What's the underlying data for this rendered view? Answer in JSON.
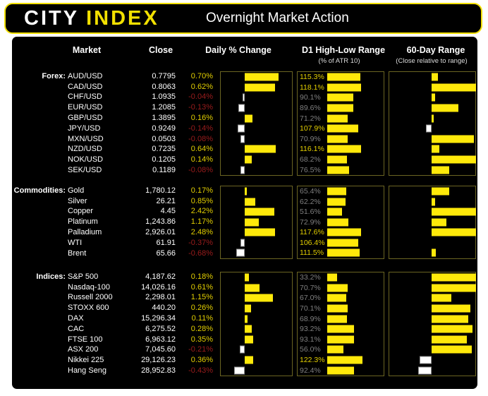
{
  "header": {
    "logo_primary": "CITY",
    "logo_accent": "INDEX",
    "title": "Overnight Market Action"
  },
  "columns": {
    "market": "Market",
    "close": "Close",
    "daily": "Daily % Change",
    "d1": "D1 High-Low Range",
    "d1_sub": "(% of ATR 10)",
    "range60": "60-Day Range",
    "range60_sub": "(Close relative to range)"
  },
  "colors": {
    "page_bg": "#ffffff",
    "panel_bg": "#000000",
    "accent_yellow": "#f2e000",
    "bar_yellow": "#ffe90a",
    "pos_text": "#e3cf00",
    "neg_text": "#9b1c1c",
    "muted_gray": "#7f7f7f",
    "chart_border": "#6b6522",
    "white_text": "#ffffff"
  },
  "chart_data": {
    "type": "table",
    "title": "Overnight Market Action",
    "legend": "yellow bars = positive / above mid-range; white bars = negative / below mid-range; D1 labels yellow when >= 100%",
    "daily_axis": {
      "zero_position_fraction": 0.33,
      "note": "axis max differs per group, negative side spans half of positive side"
    },
    "d1_axis": {
      "min_pct": 0,
      "max_pct": 200,
      "highlight_min_pct": 100
    },
    "range60_axis": {
      "min_pct": 0,
      "max_pct": 100,
      "center_pct": 50
    },
    "groups": [
      {
        "label": "Forex:",
        "daily_axis_max_pct": 1.0,
        "rows": [
          {
            "market": "AUD/USD",
            "close": "0.7795",
            "daily_pct": 0.7,
            "d1_range_pct": 115.3,
            "range60_pos_pct": 57
          },
          {
            "market": "CAD/USD",
            "close": "0.8063",
            "daily_pct": 0.62,
            "d1_range_pct": 118.1,
            "range60_pos_pct": 100
          },
          {
            "market": "CHF/USD",
            "close": "1.0935",
            "daily_pct": -0.04,
            "d1_range_pct": 90.1,
            "range60_pos_pct": 54
          },
          {
            "market": "EUR/USD",
            "close": "1.2085",
            "daily_pct": -0.13,
            "d1_range_pct": 89.6,
            "range60_pos_pct": 80
          },
          {
            "market": "GBP/USD",
            "close": "1.3895",
            "daily_pct": 0.16,
            "d1_range_pct": 71.2,
            "range60_pos_pct": 52
          },
          {
            "market": "JPY/USD",
            "close": "0.9249",
            "daily_pct": -0.14,
            "d1_range_pct": 107.9,
            "range60_pos_pct": 43
          },
          {
            "market": "MXN/USD",
            "close": "0.0503",
            "daily_pct": -0.08,
            "d1_range_pct": 70.9,
            "range60_pos_pct": 98
          },
          {
            "market": "NZD/USD",
            "close": "0.7235",
            "daily_pct": 0.64,
            "d1_range_pct": 116.1,
            "range60_pos_pct": 59
          },
          {
            "market": "NOK/USD",
            "close": "0.1205",
            "daily_pct": 0.14,
            "d1_range_pct": 68.2,
            "range60_pos_pct": 100
          },
          {
            "market": "SEK/USD",
            "close": "0.1189",
            "daily_pct": -0.08,
            "d1_range_pct": 76.5,
            "range60_pos_pct": 70
          }
        ]
      },
      {
        "label": "Commodities:",
        "daily_axis_max_pct": 4.0,
        "rows": [
          {
            "market": "Gold",
            "close": "1,780.12",
            "daily_pct": 0.17,
            "d1_range_pct": 65.4,
            "range60_pos_pct": 70
          },
          {
            "market": "Silver",
            "close": "26.21",
            "daily_pct": 0.85,
            "d1_range_pct": 62.2,
            "range60_pos_pct": 54
          },
          {
            "market": "Copper",
            "close": "4.45",
            "daily_pct": 2.42,
            "d1_range_pct": 51.6,
            "range60_pos_pct": 100
          },
          {
            "market": "Platinum",
            "close": "1,243.86",
            "daily_pct": 1.17,
            "d1_range_pct": 72.9,
            "range60_pos_pct": 67
          },
          {
            "market": "Palladium",
            "close": "2,926.01",
            "daily_pct": 2.48,
            "d1_range_pct": 117.6,
            "range60_pos_pct": 100
          },
          {
            "market": "WTI",
            "close": "61.91",
            "daily_pct": -0.37,
            "d1_range_pct": 106.4,
            "range60_pos_pct": 50
          },
          {
            "market": "Brent",
            "close": "65.66",
            "daily_pct": -0.68,
            "d1_range_pct": 111.5,
            "range60_pos_pct": 55
          }
        ]
      },
      {
        "label": "Indices:",
        "daily_axis_max_pct": 2.0,
        "rows": [
          {
            "market": "S&P 500",
            "close": "4,187.62",
            "daily_pct": 0.18,
            "d1_range_pct": 33.2,
            "range60_pos_pct": 100
          },
          {
            "market": "Nasdaq-100",
            "close": "14,026.16",
            "daily_pct": 0.61,
            "d1_range_pct": 70.7,
            "range60_pos_pct": 100
          },
          {
            "market": "Russell 2000",
            "close": "2,298.01",
            "daily_pct": 1.15,
            "d1_range_pct": 67.0,
            "range60_pos_pct": 72
          },
          {
            "market": "STOXX 600",
            "close": "440.20",
            "daily_pct": 0.26,
            "d1_range_pct": 70.1,
            "range60_pos_pct": 94
          },
          {
            "market": "DAX",
            "close": "15,296.34",
            "daily_pct": 0.11,
            "d1_range_pct": 68.9,
            "range60_pos_pct": 91
          },
          {
            "market": "CAC",
            "close": "6,275.52",
            "daily_pct": 0.28,
            "d1_range_pct": 93.2,
            "range60_pos_pct": 96
          },
          {
            "market": "FTSE 100",
            "close": "6,963.12",
            "daily_pct": 0.35,
            "d1_range_pct": 93.1,
            "range60_pos_pct": 90
          },
          {
            "market": "ASX 200",
            "close": "7,045.60",
            "daily_pct": -0.21,
            "d1_range_pct": 56.0,
            "range60_pos_pct": 95
          },
          {
            "market": "Nikkei 225",
            "close": "29,126.23",
            "daily_pct": 0.36,
            "d1_range_pct": 122.3,
            "range60_pos_pct": 36
          },
          {
            "market": "Hang Seng",
            "close": "28,952.83",
            "daily_pct": -0.43,
            "d1_range_pct": 92.4,
            "range60_pos_pct": 34
          }
        ]
      }
    ]
  }
}
